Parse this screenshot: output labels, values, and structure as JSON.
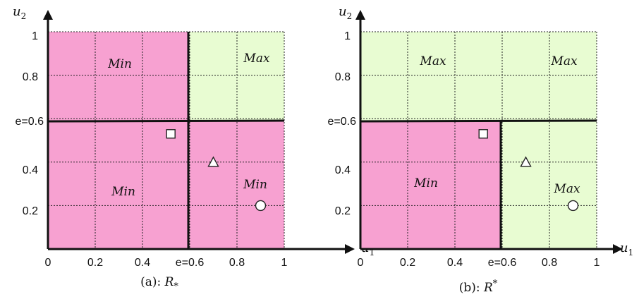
{
  "colors": {
    "min": "#f7a1d1",
    "max": "#e8fcd2",
    "line": "#111111"
  },
  "panels": [
    {
      "id": "a",
      "caption_prefix": "(a): ",
      "caption_symbol": "R",
      "caption_mark": "*",
      "caption_mark_pos": "sub",
      "axis_x": {
        "var": "u",
        "sub": "1"
      },
      "axis_y": {
        "var": "u",
        "sub": "2"
      },
      "x_ticks": [
        "0",
        "0.2",
        "0.4",
        "e=0.6",
        "0.8",
        "1"
      ],
      "y_ticks": [
        "1",
        "0.8",
        "e=0.6",
        "0.4",
        "0.2"
      ],
      "regions": {
        "top_left": {
          "label": "Min",
          "type": "min"
        },
        "top_right": {
          "label": "Max",
          "type": "max"
        },
        "bottom_left": {
          "label": "Min",
          "type": "min"
        },
        "bottom_right": {
          "label": "Min",
          "type": "min"
        }
      }
    },
    {
      "id": "b",
      "caption_prefix": "(b): ",
      "caption_symbol": "R",
      "caption_mark": "*",
      "caption_mark_pos": "sup",
      "axis_x": {
        "var": "u",
        "sub": "1"
      },
      "axis_y": {
        "var": "u",
        "sub": "2"
      },
      "x_ticks": [
        "0",
        "0.2",
        "0.4",
        "e=0.6",
        "0.8",
        "1"
      ],
      "y_ticks": [
        "1",
        "0.8",
        "e=0.6",
        "0.4",
        "0.2"
      ],
      "regions": {
        "top_left": {
          "label": "Max",
          "type": "max"
        },
        "top_right": {
          "label": "Max",
          "type": "max"
        },
        "bottom_left": {
          "label": "Min",
          "type": "min"
        },
        "bottom_right": {
          "label": "Max",
          "type": "max"
        }
      }
    }
  ],
  "markers": [
    {
      "shape": "square",
      "u1": 0.52,
      "u2": 0.53
    },
    {
      "shape": "triangle",
      "u1": 0.7,
      "u2": 0.4
    },
    {
      "shape": "circle",
      "u1": 0.9,
      "u2": 0.2
    }
  ]
}
